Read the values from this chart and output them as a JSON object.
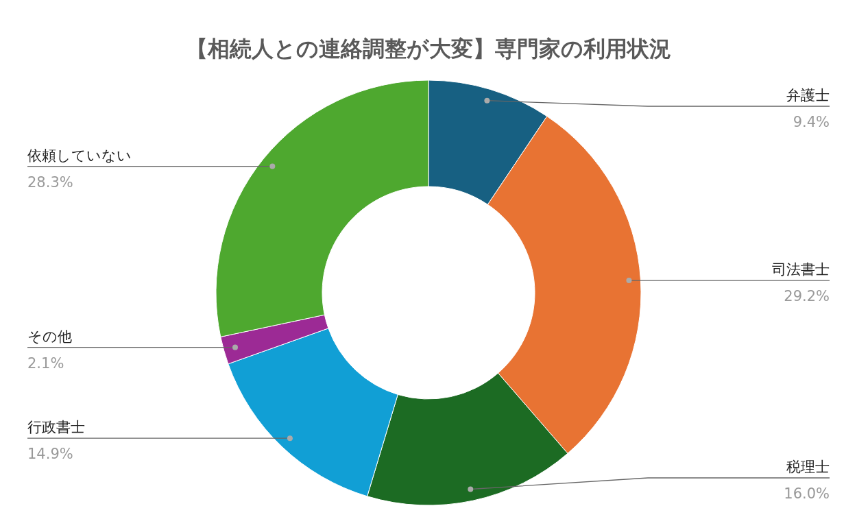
{
  "chart_data": {
    "type": "donut",
    "title": "【相続人との連絡調整が大変】専門家の利用状況",
    "categories": [
      "弁護士",
      "司法書士",
      "税理士",
      "行政書士",
      "その他",
      "依頼していない"
    ],
    "values": [
      9.4,
      29.2,
      16.0,
      14.9,
      2.1,
      28.3
    ],
    "value_labels": [
      "9.4%",
      "29.2%",
      "16.0%",
      "14.9%",
      "2.1%",
      "28.3%"
    ],
    "colors": [
      "#176082",
      "#e87333",
      "#1c6b23",
      "#119fd5",
      "#9c2a95",
      "#4ea82f"
    ],
    "legend": false
  }
}
